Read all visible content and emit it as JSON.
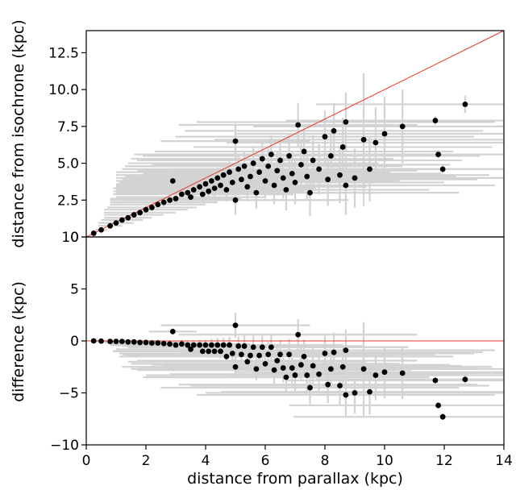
{
  "chart_data": [
    {
      "type": "scatter",
      "panel": "top",
      "xlabel": "",
      "ylabel": "distance from isochrone (kpc)",
      "xlim": [
        0,
        14
      ],
      "ylim": [
        0,
        14
      ],
      "yticks": [
        0,
        2.5,
        5.0,
        7.5,
        10.0,
        12.5
      ],
      "ytick_labels": [
        "0",
        "2.5",
        "5.0",
        "7.5",
        "10.0",
        "12.5"
      ],
      "grid": false,
      "reference_line": {
        "style": "y = x",
        "color": "#e8372c"
      },
      "marker_color": "#000000",
      "errorbar_color": "#d3d3d3",
      "points": [
        {
          "x": 0.25,
          "y": 0.25,
          "ex": 0.1,
          "ey": 0.05
        },
        {
          "x": 0.5,
          "y": 0.48,
          "ex": 0.2,
          "ey": 0.08
        },
        {
          "x": 0.8,
          "y": 0.75,
          "ex": 0.4,
          "ey": 0.1
        },
        {
          "x": 1.0,
          "y": 0.95,
          "ex": 0.6,
          "ey": 0.12
        },
        {
          "x": 1.2,
          "y": 1.15,
          "ex": 0.7,
          "ey": 0.15
        },
        {
          "x": 1.4,
          "y": 1.3,
          "ex": 0.8,
          "ey": 0.15
        },
        {
          "x": 1.6,
          "y": 1.5,
          "ex": 1.0,
          "ey": 0.2
        },
        {
          "x": 1.8,
          "y": 1.65,
          "ex": 1.2,
          "ey": 0.2
        },
        {
          "x": 2.0,
          "y": 1.85,
          "ex": 1.4,
          "ey": 0.25
        },
        {
          "x": 2.2,
          "y": 2.0,
          "ex": 1.5,
          "ey": 0.25
        },
        {
          "x": 2.4,
          "y": 2.2,
          "ex": 1.6,
          "ey": 0.3
        },
        {
          "x": 2.6,
          "y": 2.35,
          "ex": 1.8,
          "ey": 0.3
        },
        {
          "x": 2.8,
          "y": 2.5,
          "ex": 2.0,
          "ey": 0.35
        },
        {
          "x": 2.9,
          "y": 3.8,
          "ex": 0.8,
          "ey": 0.3
        },
        {
          "x": 3.0,
          "y": 2.6,
          "ex": 2.2,
          "ey": 0.35
        },
        {
          "x": 3.2,
          "y": 2.9,
          "ex": 2.3,
          "ey": 0.4
        },
        {
          "x": 3.4,
          "y": 3.0,
          "ex": 2.4,
          "ey": 0.4
        },
        {
          "x": 3.5,
          "y": 2.7,
          "ex": 2.5,
          "ey": 0.4
        },
        {
          "x": 3.6,
          "y": 3.2,
          "ex": 2.6,
          "ey": 0.45
        },
        {
          "x": 3.8,
          "y": 3.4,
          "ex": 2.8,
          "ey": 0.5
        },
        {
          "x": 3.9,
          "y": 2.9,
          "ex": 3.0,
          "ey": 0.5
        },
        {
          "x": 4.0,
          "y": 3.6,
          "ex": 3.0,
          "ey": 0.5
        },
        {
          "x": 4.1,
          "y": 3.1,
          "ex": 3.2,
          "ey": 0.6
        },
        {
          "x": 4.2,
          "y": 3.8,
          "ex": 3.2,
          "ey": 0.6
        },
        {
          "x": 4.3,
          "y": 3.3,
          "ex": 3.4,
          "ey": 0.6
        },
        {
          "x": 4.4,
          "y": 4.0,
          "ex": 3.4,
          "ey": 0.7
        },
        {
          "x": 4.5,
          "y": 3.5,
          "ex": 3.5,
          "ey": 0.7
        },
        {
          "x": 4.6,
          "y": 4.2,
          "ex": 3.6,
          "ey": 0.7
        },
        {
          "x": 4.7,
          "y": 3.2,
          "ex": 3.6,
          "ey": 0.8
        },
        {
          "x": 4.8,
          "y": 4.4,
          "ex": 3.8,
          "ey": 0.8
        },
        {
          "x": 4.9,
          "y": 3.7,
          "ex": 3.8,
          "ey": 0.8
        },
        {
          "x": 5.0,
          "y": 6.5,
          "ex": 2.5,
          "ey": 1.2
        },
        {
          "x": 5.0,
          "y": 2.5,
          "ex": 3.8,
          "ey": 1.0
        },
        {
          "x": 5.1,
          "y": 4.6,
          "ex": 3.9,
          "ey": 0.9
        },
        {
          "x": 5.2,
          "y": 3.9,
          "ex": 4.0,
          "ey": 0.9
        },
        {
          "x": 5.3,
          "y": 4.8,
          "ex": 4.0,
          "ey": 1.0
        },
        {
          "x": 5.4,
          "y": 3.4,
          "ex": 4.0,
          "ey": 1.0
        },
        {
          "x": 5.5,
          "y": 4.1,
          "ex": 4.2,
          "ey": 1.0
        },
        {
          "x": 5.6,
          "y": 5.0,
          "ex": 4.2,
          "ey": 1.1
        },
        {
          "x": 5.7,
          "y": 3.0,
          "ex": 4.2,
          "ey": 1.1
        },
        {
          "x": 5.8,
          "y": 4.4,
          "ex": 4.4,
          "ey": 1.1
        },
        {
          "x": 5.9,
          "y": 5.3,
          "ex": 4.4,
          "ey": 1.2
        },
        {
          "x": 6.0,
          "y": 3.8,
          "ex": 4.5,
          "ey": 1.2
        },
        {
          "x": 6.1,
          "y": 4.8,
          "ex": 4.5,
          "ey": 1.2
        },
        {
          "x": 6.2,
          "y": 5.6,
          "ex": 4.6,
          "ey": 1.3
        },
        {
          "x": 6.3,
          "y": 3.5,
          "ex": 4.6,
          "ey": 1.3
        },
        {
          "x": 6.4,
          "y": 4.5,
          "ex": 4.7,
          "ey": 1.3
        },
        {
          "x": 6.5,
          "y": 5.2,
          "ex": 4.8,
          "ey": 1.4
        },
        {
          "x": 6.6,
          "y": 4.0,
          "ex": 4.8,
          "ey": 1.4
        },
        {
          "x": 6.7,
          "y": 3.2,
          "ex": 4.8,
          "ey": 1.4
        },
        {
          "x": 6.8,
          "y": 5.5,
          "ex": 4.9,
          "ey": 1.5
        },
        {
          "x": 6.9,
          "y": 4.3,
          "ex": 5.0,
          "ey": 1.5
        },
        {
          "x": 7.0,
          "y": 3.7,
          "ex": 5.0,
          "ey": 1.5
        },
        {
          "x": 7.1,
          "y": 7.6,
          "ex": 4.0,
          "ey": 1.5
        },
        {
          "x": 7.2,
          "y": 4.9,
          "ex": 5.0,
          "ey": 1.6
        },
        {
          "x": 7.3,
          "y": 5.8,
          "ex": 5.0,
          "ey": 1.6
        },
        {
          "x": 7.4,
          "y": 4.1,
          "ex": 5.0,
          "ey": 1.6
        },
        {
          "x": 7.5,
          "y": 3.0,
          "ex": 5.0,
          "ey": 1.6
        },
        {
          "x": 7.6,
          "y": 5.2,
          "ex": 5.0,
          "ey": 1.7
        },
        {
          "x": 7.8,
          "y": 4.6,
          "ex": 5.0,
          "ey": 1.7
        },
        {
          "x": 8.0,
          "y": 6.8,
          "ex": 5.0,
          "ey": 1.8
        },
        {
          "x": 8.1,
          "y": 3.9,
          "ex": 5.0,
          "ey": 1.8
        },
        {
          "x": 8.2,
          "y": 5.5,
          "ex": 5.0,
          "ey": 1.8
        },
        {
          "x": 8.3,
          "y": 7.2,
          "ex": 5.0,
          "ey": 1.9
        },
        {
          "x": 8.5,
          "y": 4.2,
          "ex": 5.0,
          "ey": 1.9
        },
        {
          "x": 8.6,
          "y": 6.1,
          "ex": 5.0,
          "ey": 2.0
        },
        {
          "x": 8.7,
          "y": 3.5,
          "ex": 5.0,
          "ey": 2.0
        },
        {
          "x": 8.7,
          "y": 7.8,
          "ex": 5.0,
          "ey": 2.0
        },
        {
          "x": 9.0,
          "y": 4.0,
          "ex": 5.0,
          "ey": 2.0
        },
        {
          "x": 9.3,
          "y": 6.6,
          "ex": 5.0,
          "ey": 4.5
        },
        {
          "x": 9.5,
          "y": 4.6,
          "ex": 5.0,
          "ey": 2.2
        },
        {
          "x": 9.7,
          "y": 6.4,
          "ex": 5.0,
          "ey": 2.4
        },
        {
          "x": 10.0,
          "y": 7.0,
          "ex": 5.0,
          "ey": 2.5
        },
        {
          "x": 10.6,
          "y": 7.5,
          "ex": 5.0,
          "ey": 2.5
        },
        {
          "x": 11.7,
          "y": 7.9,
          "ex": 5.0,
          "ey": 0.3
        },
        {
          "x": 11.8,
          "y": 5.6,
          "ex": 5.0,
          "ey": 0.3
        },
        {
          "x": 11.95,
          "y": 4.6,
          "ex": 5.0,
          "ey": 0.3
        },
        {
          "x": 12.7,
          "y": 9.0,
          "ex": 5.0,
          "ey": 0.6
        }
      ]
    },
    {
      "type": "scatter",
      "panel": "bottom",
      "xlabel": "distance from parallax (kpc)",
      "ylabel": "difference (kpc)",
      "xlim": [
        0,
        14
      ],
      "ylim": [
        -10,
        10
      ],
      "xticks": [
        0,
        2,
        4,
        6,
        8,
        10,
        12,
        14
      ],
      "xtick_labels": [
        "0",
        "2",
        "4",
        "6",
        "8",
        "10",
        "12",
        "14"
      ],
      "yticks": [
        -10,
        -5,
        0,
        5,
        10
      ],
      "ytick_labels": [
        "−10",
        "−5",
        "0",
        "5",
        "10"
      ],
      "grid": false,
      "reference_line": {
        "style": "y = 0",
        "color": "#e8372c"
      },
      "marker_color": "#000000",
      "errorbar_color": "#d3d3d3",
      "points": [
        {
          "x": 0.25,
          "y": 0.0,
          "ex": 0.1,
          "ey": 0.05
        },
        {
          "x": 0.5,
          "y": -0.02,
          "ex": 0.2,
          "ey": 0.08
        },
        {
          "x": 0.8,
          "y": -0.05,
          "ex": 0.4,
          "ey": 0.1
        },
        {
          "x": 1.0,
          "y": -0.05,
          "ex": 0.6,
          "ey": 0.12
        },
        {
          "x": 1.2,
          "y": -0.05,
          "ex": 0.7,
          "ey": 0.15
        },
        {
          "x": 1.4,
          "y": -0.1,
          "ex": 0.8,
          "ey": 0.15
        },
        {
          "x": 1.6,
          "y": -0.1,
          "ex": 1.0,
          "ey": 0.2
        },
        {
          "x": 1.8,
          "y": -0.15,
          "ex": 1.2,
          "ey": 0.2
        },
        {
          "x": 2.0,
          "y": -0.15,
          "ex": 1.4,
          "ey": 0.25
        },
        {
          "x": 2.2,
          "y": -0.2,
          "ex": 1.5,
          "ey": 0.25
        },
        {
          "x": 2.4,
          "y": -0.2,
          "ex": 1.6,
          "ey": 0.3
        },
        {
          "x": 2.6,
          "y": -0.25,
          "ex": 1.8,
          "ey": 0.3
        },
        {
          "x": 2.8,
          "y": -0.3,
          "ex": 2.0,
          "ey": 0.35
        },
        {
          "x": 2.9,
          "y": 0.9,
          "ex": 0.8,
          "ey": 0.3
        },
        {
          "x": 3.0,
          "y": -0.4,
          "ex": 2.2,
          "ey": 0.35
        },
        {
          "x": 3.2,
          "y": -0.3,
          "ex": 2.3,
          "ey": 0.4
        },
        {
          "x": 3.4,
          "y": -0.4,
          "ex": 2.4,
          "ey": 0.4
        },
        {
          "x": 3.5,
          "y": -0.8,
          "ex": 2.5,
          "ey": 0.4
        },
        {
          "x": 3.6,
          "y": -0.4,
          "ex": 2.6,
          "ey": 0.45
        },
        {
          "x": 3.8,
          "y": -0.4,
          "ex": 2.8,
          "ey": 0.5
        },
        {
          "x": 3.9,
          "y": -1.0,
          "ex": 3.0,
          "ey": 0.5
        },
        {
          "x": 4.0,
          "y": -0.4,
          "ex": 3.0,
          "ey": 0.5
        },
        {
          "x": 4.1,
          "y": -1.0,
          "ex": 3.2,
          "ey": 0.6
        },
        {
          "x": 4.2,
          "y": -0.4,
          "ex": 3.2,
          "ey": 0.6
        },
        {
          "x": 4.3,
          "y": -1.0,
          "ex": 3.4,
          "ey": 0.6
        },
        {
          "x": 4.4,
          "y": -0.4,
          "ex": 3.4,
          "ey": 0.7
        },
        {
          "x": 4.5,
          "y": -1.0,
          "ex": 3.5,
          "ey": 0.7
        },
        {
          "x": 4.6,
          "y": -0.4,
          "ex": 3.6,
          "ey": 0.7
        },
        {
          "x": 4.7,
          "y": -1.5,
          "ex": 3.6,
          "ey": 0.8
        },
        {
          "x": 4.8,
          "y": -0.4,
          "ex": 3.8,
          "ey": 0.8
        },
        {
          "x": 4.9,
          "y": -1.2,
          "ex": 3.8,
          "ey": 0.8
        },
        {
          "x": 5.0,
          "y": 1.5,
          "ex": 2.5,
          "ey": 1.2
        },
        {
          "x": 5.0,
          "y": -2.5,
          "ex": 3.8,
          "ey": 1.0
        },
        {
          "x": 5.1,
          "y": -0.5,
          "ex": 3.9,
          "ey": 0.9
        },
        {
          "x": 5.2,
          "y": -1.3,
          "ex": 4.0,
          "ey": 0.9
        },
        {
          "x": 5.3,
          "y": -0.5,
          "ex": 4.0,
          "ey": 1.0
        },
        {
          "x": 5.4,
          "y": -2.0,
          "ex": 4.0,
          "ey": 1.0
        },
        {
          "x": 5.5,
          "y": -1.4,
          "ex": 4.2,
          "ey": 1.0
        },
        {
          "x": 5.6,
          "y": -0.6,
          "ex": 4.2,
          "ey": 1.1
        },
        {
          "x": 5.7,
          "y": -2.7,
          "ex": 4.2,
          "ey": 1.1
        },
        {
          "x": 5.8,
          "y": -1.4,
          "ex": 4.4,
          "ey": 1.1
        },
        {
          "x": 5.9,
          "y": -0.6,
          "ex": 4.4,
          "ey": 1.2
        },
        {
          "x": 6.0,
          "y": -2.2,
          "ex": 4.5,
          "ey": 1.2
        },
        {
          "x": 6.1,
          "y": -1.3,
          "ex": 4.5,
          "ey": 1.2
        },
        {
          "x": 6.2,
          "y": -0.6,
          "ex": 4.6,
          "ey": 1.3
        },
        {
          "x": 6.3,
          "y": -2.8,
          "ex": 4.6,
          "ey": 1.3
        },
        {
          "x": 6.4,
          "y": -1.9,
          "ex": 4.7,
          "ey": 1.3
        },
        {
          "x": 6.5,
          "y": -1.3,
          "ex": 4.8,
          "ey": 1.4
        },
        {
          "x": 6.6,
          "y": -2.6,
          "ex": 4.8,
          "ey": 1.4
        },
        {
          "x": 6.7,
          "y": -3.5,
          "ex": 4.8,
          "ey": 1.4
        },
        {
          "x": 6.8,
          "y": -1.3,
          "ex": 4.9,
          "ey": 1.5
        },
        {
          "x": 6.9,
          "y": -2.6,
          "ex": 5.0,
          "ey": 1.5
        },
        {
          "x": 7.0,
          "y": -3.3,
          "ex": 5.0,
          "ey": 1.5
        },
        {
          "x": 7.1,
          "y": 0.6,
          "ex": 4.0,
          "ey": 1.5
        },
        {
          "x": 7.2,
          "y": -2.3,
          "ex": 5.0,
          "ey": 1.6
        },
        {
          "x": 7.3,
          "y": -1.5,
          "ex": 5.0,
          "ey": 1.6
        },
        {
          "x": 7.4,
          "y": -3.3,
          "ex": 5.0,
          "ey": 1.6
        },
        {
          "x": 7.5,
          "y": -4.5,
          "ex": 5.0,
          "ey": 1.6
        },
        {
          "x": 7.6,
          "y": -2.4,
          "ex": 5.0,
          "ey": 1.7
        },
        {
          "x": 7.8,
          "y": -3.2,
          "ex": 5.0,
          "ey": 1.7
        },
        {
          "x": 8.0,
          "y": -1.2,
          "ex": 5.0,
          "ey": 1.8
        },
        {
          "x": 8.1,
          "y": -4.2,
          "ex": 5.0,
          "ey": 1.8
        },
        {
          "x": 8.2,
          "y": -2.7,
          "ex": 5.0,
          "ey": 1.8
        },
        {
          "x": 8.3,
          "y": -1.1,
          "ex": 5.0,
          "ey": 1.9
        },
        {
          "x": 8.5,
          "y": -4.3,
          "ex": 5.0,
          "ey": 1.9
        },
        {
          "x": 8.6,
          "y": -2.5,
          "ex": 5.0,
          "ey": 2.0
        },
        {
          "x": 8.7,
          "y": -5.2,
          "ex": 5.0,
          "ey": 2.0
        },
        {
          "x": 8.7,
          "y": -0.9,
          "ex": 5.0,
          "ey": 2.0
        },
        {
          "x": 9.0,
          "y": -5.0,
          "ex": 5.0,
          "ey": 2.0
        },
        {
          "x": 9.3,
          "y": -2.7,
          "ex": 5.0,
          "ey": 4.5
        },
        {
          "x": 9.5,
          "y": -4.9,
          "ex": 5.0,
          "ey": 2.2
        },
        {
          "x": 9.7,
          "y": -3.3,
          "ex": 5.0,
          "ey": 2.4
        },
        {
          "x": 10.0,
          "y": -3.0,
          "ex": 5.0,
          "ey": 2.5
        },
        {
          "x": 10.6,
          "y": -3.1,
          "ex": 5.0,
          "ey": 2.5
        },
        {
          "x": 11.7,
          "y": -3.8,
          "ex": 5.0,
          "ey": 0.3
        },
        {
          "x": 11.8,
          "y": -6.2,
          "ex": 5.0,
          "ey": 0.3
        },
        {
          "x": 11.95,
          "y": -7.3,
          "ex": 5.0,
          "ey": 0.3
        },
        {
          "x": 12.7,
          "y": -3.7,
          "ex": 5.0,
          "ey": 0.6
        }
      ]
    }
  ]
}
